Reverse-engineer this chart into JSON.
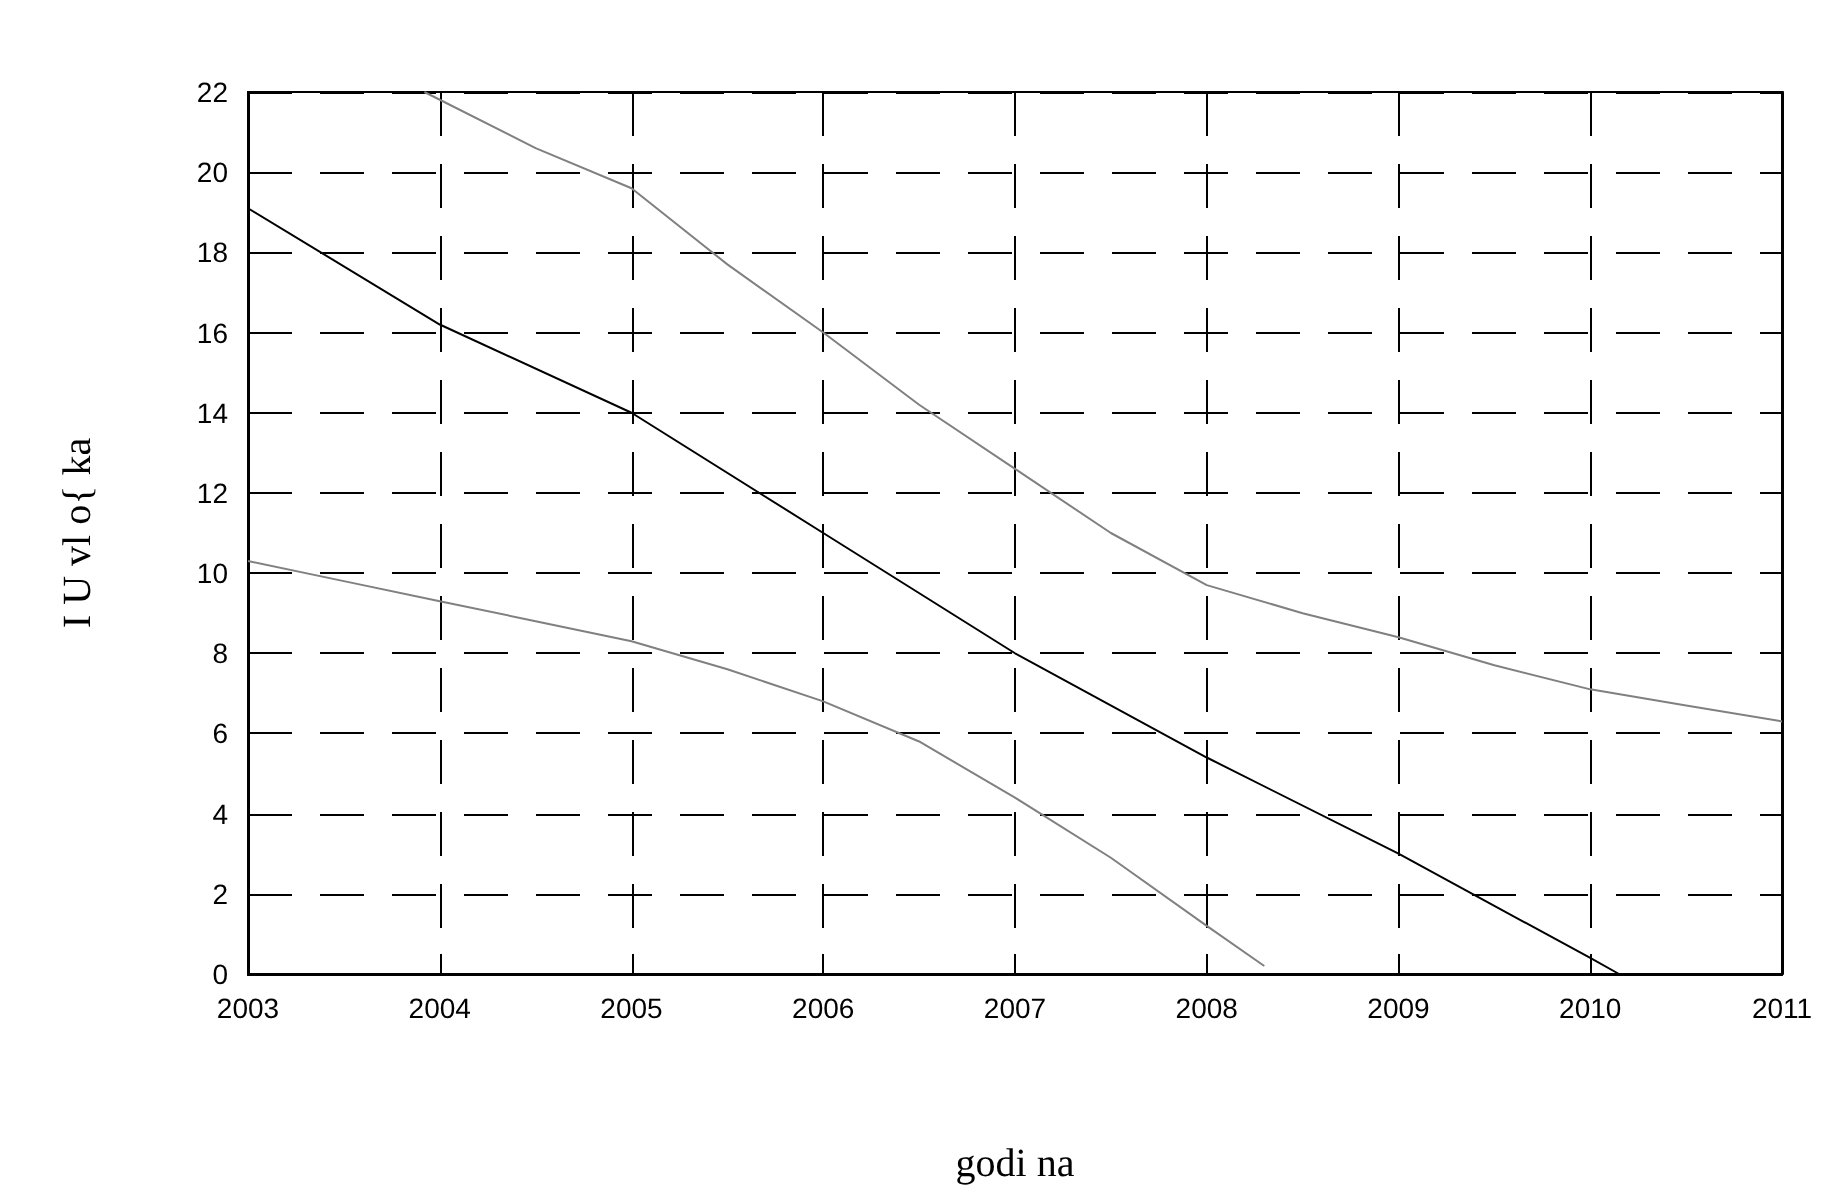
{
  "chart_data": {
    "type": "line",
    "xlabel": "godi na",
    "ylabel": "I U vl o{ ka",
    "xlim": [
      2003,
      2011
    ],
    "xticks": [
      2003,
      2004,
      2005,
      2006,
      2007,
      2008,
      2009,
      2010,
      2011
    ],
    "ylim": [
      0,
      22
    ],
    "yticks": [
      0,
      2,
      4,
      6,
      8,
      10,
      12,
      14,
      16,
      18,
      20,
      22
    ],
    "grid": true,
    "marker": "none",
    "line_style": "solid",
    "series": [
      {
        "color": "#000000",
        "x": [
          2003,
          2004,
          2005,
          2006,
          2007,
          2008,
          2009,
          2010,
          2010.15
        ],
        "values": [
          19.1,
          16.2,
          14.0,
          11.0,
          8.0,
          5.4,
          3.0,
          0.4,
          0
        ]
      },
      {
        "color": "#808080",
        "x": [
          2003.92,
          2004.5,
          2005,
          2005.5,
          2006,
          2006.5,
          2007,
          2007.5,
          2008,
          2008.5,
          2009,
          2009.5,
          2010,
          2010.5,
          2011
        ],
        "values": [
          22,
          20.6,
          19.6,
          17.7,
          16,
          14.2,
          12.6,
          11,
          9.7,
          9,
          8.4,
          7.7,
          7.1,
          6.7,
          6.3
        ]
      },
      {
        "color": "#808080",
        "x": [
          2003,
          2003.5,
          2004,
          2004.5,
          2005,
          2005.5,
          2006,
          2006.5,
          2007,
          2007.5,
          2008,
          2008.3
        ],
        "values": [
          10.3,
          9.8,
          9.3,
          8.8,
          8.3,
          7.6,
          6.8,
          5.8,
          4.4,
          2.9,
          1.2,
          0.2
        ]
      }
    ]
  }
}
